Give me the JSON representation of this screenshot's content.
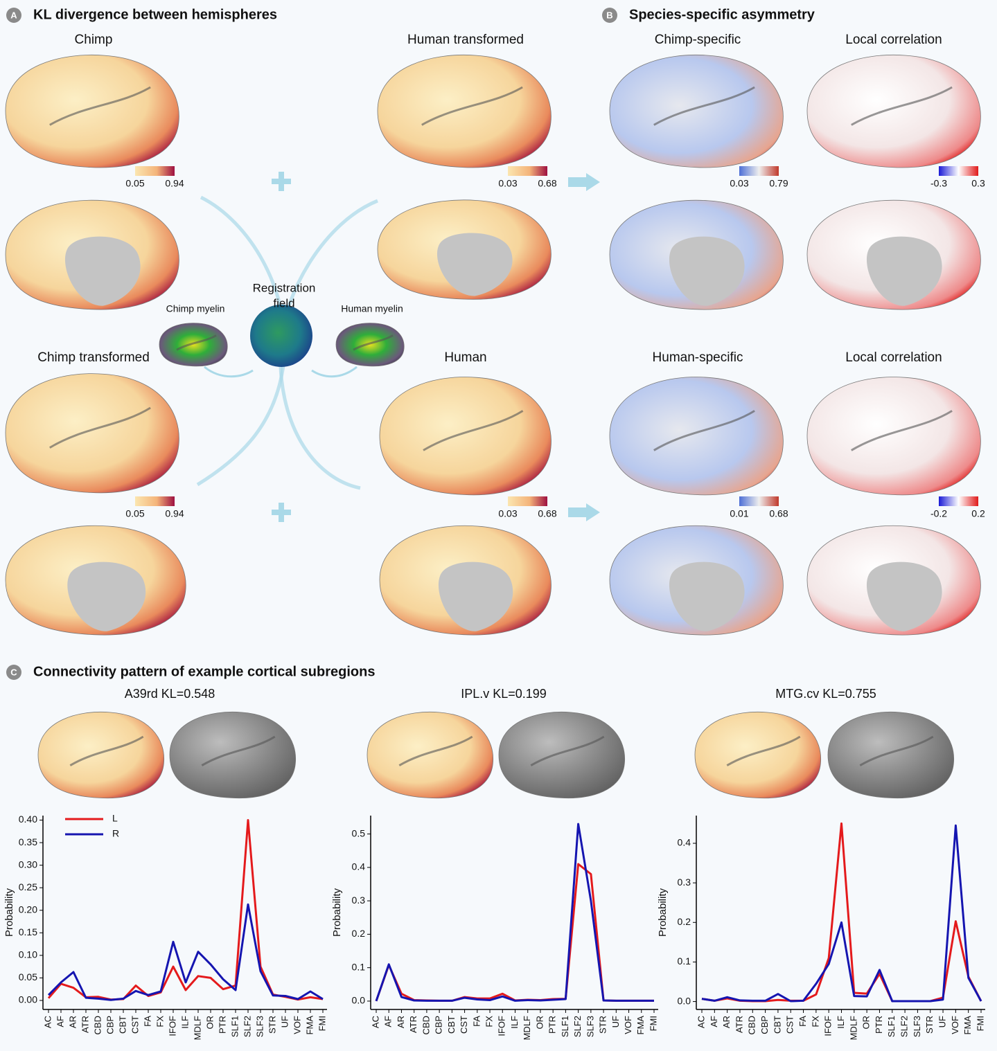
{
  "panels": [
    {
      "letter": "A",
      "title": "KL divergence between hemispheres"
    },
    {
      "letter": "B",
      "title": "Species-specific asymmetry"
    },
    {
      "letter": "C",
      "title": "Connectivity pattern of example cortical subregions"
    }
  ],
  "brain_labels": [
    "Chimp",
    "Human transformed",
    "Chimp-specific",
    "Local correlation",
    "Chimp transformed",
    "Human",
    "Human-specific",
    "Local correlation"
  ],
  "registration": {
    "title_lines": [
      "Registration",
      "field"
    ],
    "left": "Chimp myelin",
    "right": "Human myelin"
  },
  "colorbars": [
    {
      "colormap": "heat",
      "min": 0.05,
      "max": 0.94
    },
    {
      "colormap": "heat",
      "min": 0.03,
      "max": 0.68
    },
    {
      "colormap": "diverging",
      "min": 0.03,
      "max": 0.79
    },
    {
      "colormap": "correlation",
      "min": -0.3,
      "max": 0.3
    },
    {
      "colormap": "heat",
      "min": 0.05,
      "max": 0.94
    },
    {
      "colormap": "heat",
      "min": 0.03,
      "max": 0.68
    },
    {
      "colormap": "diverging",
      "min": 0.01,
      "max": 0.68
    },
    {
      "colormap": "correlation",
      "min": -0.2,
      "max": 0.2
    }
  ],
  "chart_data": [
    {
      "type": "line",
      "title": "A39rd KL=0.548",
      "y_label": "Probability",
      "legend": "upper left",
      "categories": [
        "AC",
        "AF",
        "AR",
        "ATR",
        "CBD",
        "CBP",
        "CBT",
        "CST",
        "FA",
        "FX",
        "IFOF",
        "ILF",
        "MDLF",
        "OR",
        "PTR",
        "SLF1",
        "SLF2",
        "SLF3",
        "STR",
        "UF",
        "VOF",
        "FMA",
        "FMI"
      ],
      "series": [
        {
          "name": "L",
          "color": "#e41a1c",
          "values": [
            0.005,
            0.037,
            0.028,
            0.007,
            0.008,
            0.002,
            0.003,
            0.033,
            0.01,
            0.018,
            0.075,
            0.023,
            0.054,
            0.05,
            0.025,
            0.033,
            0.4,
            0.075,
            0.013,
            0.008,
            0.002,
            0.007,
            0.003
          ]
        },
        {
          "name": "R",
          "color": "#1515b0",
          "values": [
            0.012,
            0.04,
            0.063,
            0.006,
            0.004,
            0.001,
            0.004,
            0.021,
            0.012,
            0.02,
            0.13,
            0.04,
            0.108,
            0.08,
            0.047,
            0.023,
            0.213,
            0.065,
            0.011,
            0.01,
            0.003,
            0.02,
            0.003
          ]
        }
      ],
      "ylim": [
        -0.02,
        0.41
      ],
      "yticks": [
        {
          "value": 0,
          "label": "0.00"
        },
        0.05,
        {
          "value": 0.1,
          "label": "0.10"
        },
        0.15,
        {
          "value": 0.2,
          "label": "0.20"
        },
        0.25,
        {
          "value": 0.3,
          "label": "0.30"
        },
        0.35,
        {
          "value": 0.4,
          "label": "0.40"
        }
      ]
    },
    {
      "type": "line",
      "title": "IPL.v KL=0.199",
      "y_label": "Probability",
      "categories": [
        "AC",
        "AF",
        "AR",
        "ATR",
        "CBD",
        "CBP",
        "CBT",
        "CST",
        "FA",
        "FX",
        "IFOF",
        "ILF",
        "MDLF",
        "OR",
        "PTR",
        "SLF1",
        "SLF2",
        "SLF3",
        "STR",
        "UF",
        "VOF",
        "FMA",
        "FMI"
      ],
      "series": [
        {
          "color": "#e41a1c",
          "values": [
            0,
            0.108,
            0.022,
            0.003,
            0.002,
            0.001,
            0.001,
            0.012,
            0.008,
            0.008,
            0.022,
            0.002,
            0.004,
            0.003,
            0.006,
            0.007,
            0.41,
            0.38,
            0.002,
            0.001,
            0.001,
            0.001,
            0.001
          ]
        },
        {
          "color": "#1515b0",
          "values": [
            0,
            0.11,
            0.012,
            0.002,
            0.001,
            0.001,
            0.001,
            0.01,
            0.005,
            0.003,
            0.014,
            0.001,
            0.003,
            0.002,
            0.004,
            0.006,
            0.53,
            0.3,
            0.002,
            0.001,
            0.001,
            0.001,
            0.001
          ]
        }
      ],
      "ylim": [
        -0.025,
        0.555
      ],
      "yticks": [
        {
          "value": 0,
          "label": "0.0"
        },
        0.1,
        0.2,
        0.3,
        0.4,
        0.5
      ]
    },
    {
      "type": "line",
      "title": "MTG.cv KL=0.755",
      "y_label": "Probability",
      "categories": [
        "AC",
        "AF",
        "AR",
        "ATR",
        "CBD",
        "CBP",
        "CBT",
        "CST",
        "FA",
        "FX",
        "IFOF",
        "ILF",
        "MDLF",
        "OR",
        "PTR",
        "SLF1",
        "SLF2",
        "SLF3",
        "STR",
        "UF",
        "VOF",
        "FMA",
        "FMI"
      ],
      "series": [
        {
          "color": "#e41a1c",
          "values": [
            0.007,
            0.002,
            0.008,
            0.002,
            0.001,
            0.001,
            0.004,
            0.002,
            0.002,
            0.018,
            0.11,
            0.45,
            0.022,
            0.02,
            0.07,
            0.001,
            0.001,
            0.001,
            0.001,
            0.01,
            0.203,
            0.063,
            0.001
          ]
        },
        {
          "color": "#1515b0",
          "values": [
            0.007,
            0.002,
            0.011,
            0.003,
            0.002,
            0.002,
            0.019,
            0.001,
            0.002,
            0.045,
            0.095,
            0.2,
            0.014,
            0.013,
            0.08,
            0.001,
            0.001,
            0.001,
            0.001,
            0.005,
            0.445,
            0.06,
            0.001
          ]
        }
      ],
      "ylim": [
        -0.02,
        0.47
      ],
      "yticks": [
        {
          "value": 0,
          "label": "0.0"
        },
        0.1,
        0.2,
        0.3,
        0.4
      ]
    }
  ]
}
